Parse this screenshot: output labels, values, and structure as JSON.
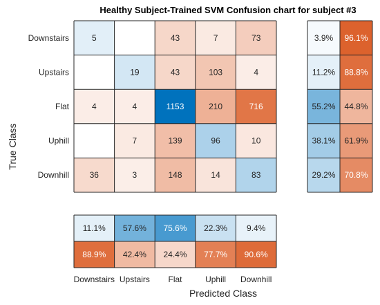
{
  "chart_data": {
    "type": "heatmap",
    "title": "Healthy Subject-Trained SVM Confusion chart for subject #3",
    "xlabel": "Predicted Class",
    "ylabel": "True Class",
    "classes": [
      "Downstairs",
      "Upstairs",
      "Flat",
      "Uphill",
      "Downhill"
    ],
    "matrix": [
      [
        5,
        null,
        43,
        7,
        73
      ],
      [
        null,
        19,
        43,
        103,
        4
      ],
      [
        4,
        4,
        1153,
        210,
        716
      ],
      [
        null,
        7,
        139,
        96,
        10
      ],
      [
        36,
        3,
        148,
        14,
        83
      ]
    ],
    "row_summary": {
      "correct": [
        "3.9%",
        "11.2%",
        "55.2%",
        "38.1%",
        "29.2%"
      ],
      "incorrect": [
        "96.1%",
        "88.8%",
        "44.8%",
        "61.9%",
        "70.8%"
      ]
    },
    "column_summary": {
      "correct": [
        "11.1%",
        "57.6%",
        "75.6%",
        "22.3%",
        "9.4%"
      ],
      "incorrect": [
        "88.9%",
        "42.4%",
        "24.4%",
        "77.7%",
        "90.6%"
      ]
    },
    "colors": {
      "correct": "#0072bd",
      "incorrect": "#d95319",
      "grid": "#262626"
    }
  }
}
